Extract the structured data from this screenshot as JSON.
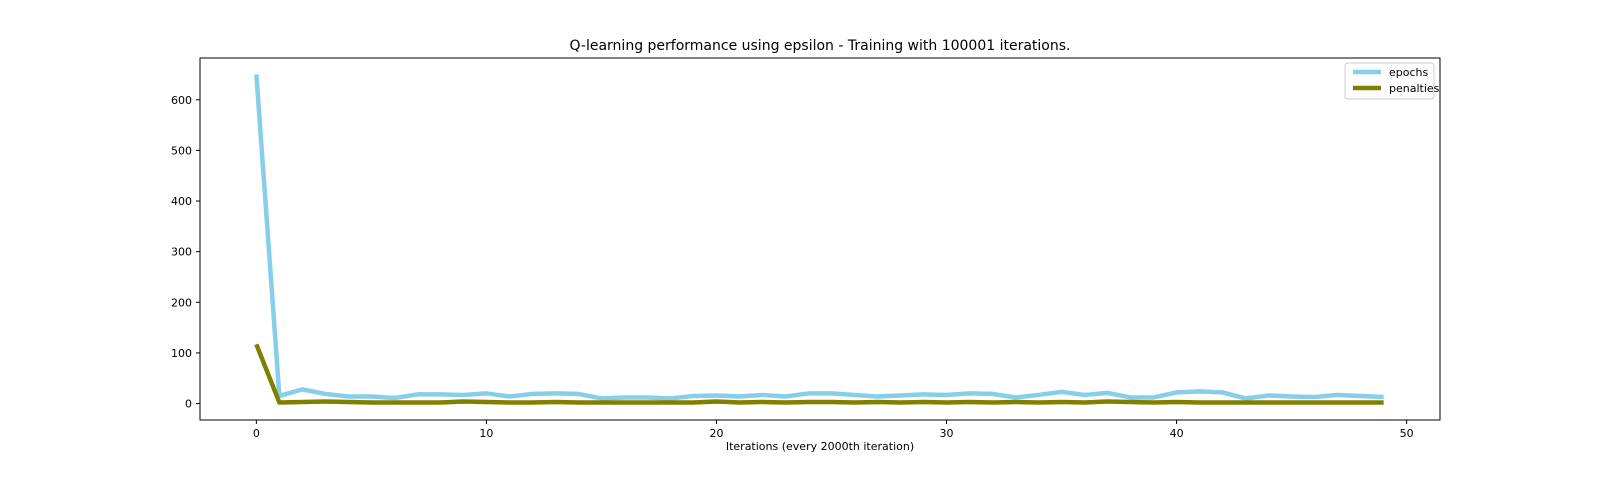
{
  "chart_data": {
    "type": "line",
    "title": "Q-learning performance using epsilon - Training with 100001 iterations.",
    "xlabel": "Iterations (every 2000th iteration)",
    "ylabel": "",
    "xlim": [
      -2.45,
      51.45
    ],
    "ylim": [
      -32.5,
      682.5
    ],
    "x_ticks": [
      0,
      10,
      20,
      30,
      40,
      50
    ],
    "y_ticks": [
      0,
      100,
      200,
      300,
      400,
      500,
      600
    ],
    "grid": false,
    "legend_position": "top-right",
    "x": [
      0,
      1,
      2,
      3,
      4,
      5,
      6,
      7,
      8,
      9,
      10,
      11,
      12,
      13,
      14,
      15,
      16,
      17,
      18,
      19,
      20,
      21,
      22,
      23,
      24,
      25,
      26,
      27,
      28,
      29,
      30,
      31,
      32,
      33,
      34,
      35,
      36,
      37,
      38,
      39,
      40,
      41,
      42,
      43,
      44,
      45,
      46,
      47,
      48,
      49
    ],
    "series": [
      {
        "name": "epochs",
        "color": "#87CEEB",
        "values": [
          650,
          15,
          28,
          19,
          14,
          14,
          11,
          18,
          18,
          17,
          20,
          14,
          19,
          20,
          19,
          10,
          12,
          12,
          10,
          15,
          16,
          14,
          17,
          14,
          20,
          20,
          17,
          14,
          16,
          18,
          17,
          20,
          19,
          12,
          17,
          23,
          17,
          21,
          12,
          12,
          22,
          24,
          22,
          10,
          16,
          14,
          13,
          17,
          15,
          13
        ]
      },
      {
        "name": "penalties",
        "color": "#808000",
        "values": [
          117,
          2,
          3,
          4,
          3,
          2,
          2,
          2,
          2,
          4,
          3,
          2,
          2,
          3,
          2,
          2,
          2,
          2,
          2,
          2,
          4,
          2,
          3,
          2,
          3,
          3,
          2,
          3,
          2,
          3,
          2,
          3,
          2,
          3,
          2,
          3,
          2,
          4,
          3,
          2,
          3,
          2,
          2,
          2,
          2,
          2,
          2,
          2,
          2,
          2
        ]
      }
    ]
  }
}
